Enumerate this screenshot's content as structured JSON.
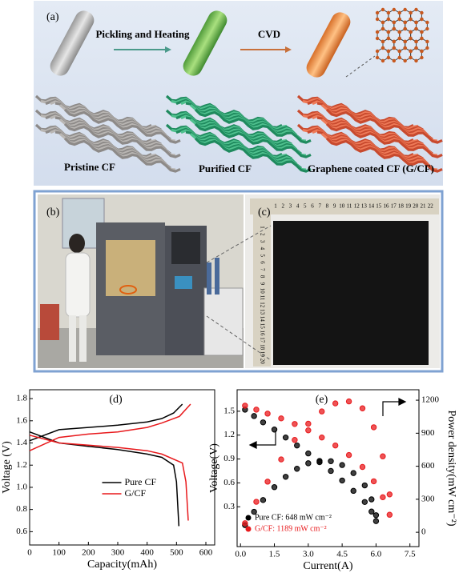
{
  "panel_a": {
    "label": "(a)",
    "step1": "Pickling and Heating",
    "step2": "CVD",
    "captions": [
      "Pristine CF",
      "Purified CF",
      "Graphene coated CF (G/CF)"
    ]
  },
  "panel_b": {
    "label": "(b)"
  },
  "panel_c": {
    "label": "(c)",
    "ruler_top": [
      1,
      2,
      3,
      4,
      5,
      6,
      7,
      8,
      9,
      10,
      11,
      12,
      13,
      14,
      15,
      16,
      17,
      18,
      19,
      20,
      21,
      22
    ],
    "ruler_left": [
      1,
      2,
      3,
      4,
      5,
      6,
      7,
      8,
      9,
      10,
      11,
      12,
      13,
      14,
      15,
      16,
      17,
      18,
      19,
      20
    ]
  },
  "chart_data": [
    {
      "type": "line",
      "label": "(d)",
      "xlabel": "Capacity(mAh)",
      "ylabel": "Voltage (V)",
      "xlim": [
        0,
        630
      ],
      "ylim": [
        0.48,
        1.88
      ],
      "xticks": [
        0,
        100,
        200,
        300,
        400,
        500,
        600
      ],
      "yticks": [
        0.6,
        0.8,
        {
          "value": 1,
          "label": "1.0"
        },
        1.2,
        1.4,
        1.6,
        1.8
      ],
      "legend": "lower center",
      "series": [
        {
          "name": "Pure CF",
          "color": "#000000",
          "x": [
            0,
            100,
            200,
            300,
            400,
            450,
            490,
            520,
            null,
            0,
            100,
            200,
            300,
            400,
            450,
            490,
            500,
            508
          ],
          "values": [
            1.42,
            1.52,
            1.54,
            1.56,
            1.59,
            1.62,
            1.67,
            1.75,
            null,
            1.5,
            1.4,
            1.37,
            1.34,
            1.3,
            1.27,
            1.2,
            1.05,
            0.65
          ]
        },
        {
          "name": "G/CF",
          "color": "#e8191c",
          "x": [
            0,
            100,
            200,
            300,
            400,
            450,
            510,
            548,
            null,
            0,
            100,
            200,
            300,
            400,
            450,
            520,
            532,
            540
          ],
          "values": [
            1.33,
            1.45,
            1.48,
            1.5,
            1.54,
            1.58,
            1.64,
            1.75,
            null,
            1.47,
            1.4,
            1.38,
            1.36,
            1.33,
            1.3,
            1.22,
            1.05,
            0.7
          ]
        }
      ]
    },
    {
      "type": "scatter",
      "label": "(e)",
      "xlabel": "Current(A)",
      "ylabel": "Voltage(V)",
      "y2label": "Power density(mW cm⁻²)",
      "xlim": [
        -0.15,
        7.9
      ],
      "ylim": [
        -0.2,
        1.77
      ],
      "y2lim": [
        -130,
        1295
      ],
      "xticks": [
        {
          "value": 0,
          "label": "0.0"
        },
        1.5,
        {
          "value": 3,
          "label": "3.0"
        },
        4.5,
        {
          "value": 6,
          "label": "6.0"
        },
        7.5
      ],
      "yticks": [
        0.3,
        0.6,
        0.9,
        1.2,
        1.5
      ],
      "y2ticks": [
        0,
        300,
        600,
        900,
        1200
      ],
      "legend": "lower left",
      "series": [
        {
          "name": "Pure CF: 648 mW cm⁻²",
          "color": "#000000",
          "x": [
            0.2,
            0.6,
            1.0,
            1.5,
            2.0,
            2.5,
            3.0,
            3.5,
            4.0,
            4.5,
            5.0,
            5.5,
            5.8,
            6.0
          ],
          "values": [
            1.52,
            1.44,
            1.36,
            1.27,
            1.17,
            1.07,
            0.97,
            0.86,
            0.75,
            0.63,
            0.5,
            0.36,
            0.24,
            0.12
          ]
        },
        {
          "color": "#000000",
          "axis": "y2",
          "x": [
            0.2,
            0.6,
            1.0,
            1.5,
            2.0,
            2.5,
            3.0,
            3.5,
            4.0,
            4.5,
            5.0,
            5.5,
            5.8,
            6.0
          ],
          "values": [
            65,
            186,
            293,
            410,
            504,
            577,
            627,
            648,
            646,
            611,
            538,
            426,
            299,
            155
          ]
        },
        {
          "name": "G/CF: 1189 mW cm⁻²",
          "color": "#e8191c",
          "x": [
            0.2,
            0.7,
            1.2,
            1.8,
            2.4,
            3.0,
            3.6,
            4.2,
            4.8,
            5.4,
            5.9,
            6.3,
            6.6
          ],
          "values": [
            1.57,
            1.52,
            1.47,
            1.41,
            1.34,
            1.26,
            1.17,
            1.07,
            0.95,
            0.8,
            0.62,
            0.42,
            0.2
          ]
        },
        {
          "color": "#e8191c",
          "axis": "y2",
          "x": [
            0.2,
            0.7,
            1.2,
            1.8,
            2.4,
            3.0,
            3.6,
            4.2,
            4.8,
            5.4,
            5.9,
            6.3,
            6.6
          ],
          "values": [
            82,
            277,
            460,
            662,
            839,
            986,
            1098,
            1171,
            1189,
            1126,
            954,
            690,
            344
          ]
        }
      ]
    }
  ]
}
